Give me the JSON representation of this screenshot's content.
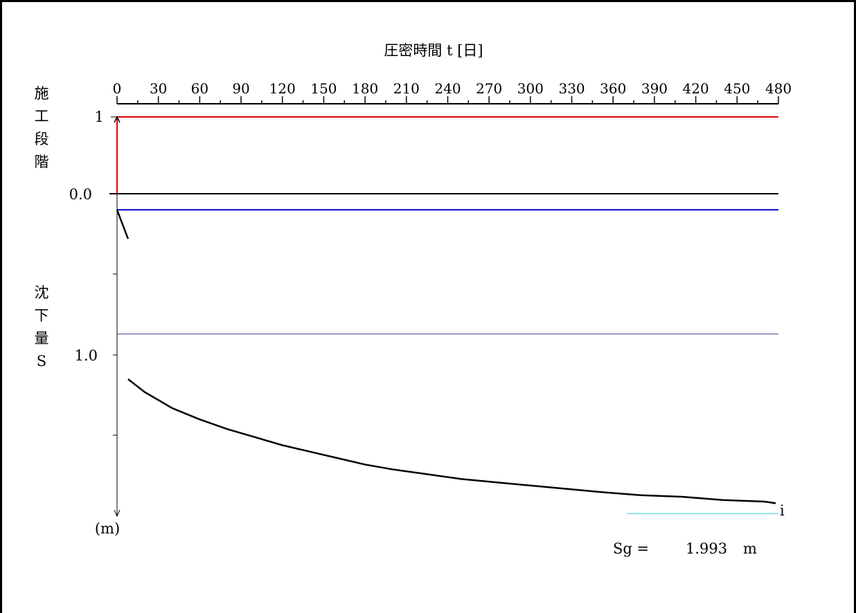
{
  "chart_data": {
    "type": "line",
    "title": "圧密時間 t [日]",
    "x_ticks": [
      0,
      30,
      60,
      90,
      120,
      150,
      180,
      210,
      240,
      270,
      300,
      330,
      360,
      390,
      420,
      450,
      480
    ],
    "xlim": [
      0,
      480
    ],
    "stage_label": [
      "施",
      "工",
      "段",
      "階"
    ],
    "stage_tick_label": "1",
    "stage_value": 1,
    "zero_label": "0.0",
    "settlement_label": [
      "沈",
      "下",
      "量",
      "S"
    ],
    "settlement_tick_label": "1.0",
    "unit_label": "(m)",
    "ylim_settlement": [
      0,
      2.0
    ],
    "construction_stage": {
      "x": [
        0,
        0,
        480
      ],
      "y": [
        0,
        1,
        1
      ],
      "color": "#e00000"
    },
    "baseline": {
      "y": 0,
      "color": "#000000"
    },
    "reference_lines": [
      {
        "y": 0.1,
        "color": "#0000cc"
      },
      {
        "y": 0.87,
        "color": "#3a3a8a"
      }
    ],
    "settlement_curve": {
      "x": [
        0,
        8,
        8,
        20,
        40,
        60,
        80,
        100,
        120,
        140,
        160,
        180,
        200,
        225,
        250,
        275,
        300,
        325,
        350,
        380,
        410,
        440,
        470,
        478
      ],
      "y": [
        0.1,
        0.28,
        1.15,
        1.23,
        1.33,
        1.4,
        1.46,
        1.51,
        1.56,
        1.6,
        1.64,
        1.68,
        1.71,
        1.74,
        1.77,
        1.79,
        1.81,
        1.83,
        1.85,
        1.87,
        1.88,
        1.9,
        1.91,
        1.92
      ],
      "color": "#000000"
    },
    "final_marker": {
      "x": 360,
      "x_end": 480,
      "y": 1.993,
      "color": "#70e0e0",
      "label": "i"
    },
    "result_label": "Sg =",
    "result_value": "1.993",
    "result_unit": "m"
  }
}
